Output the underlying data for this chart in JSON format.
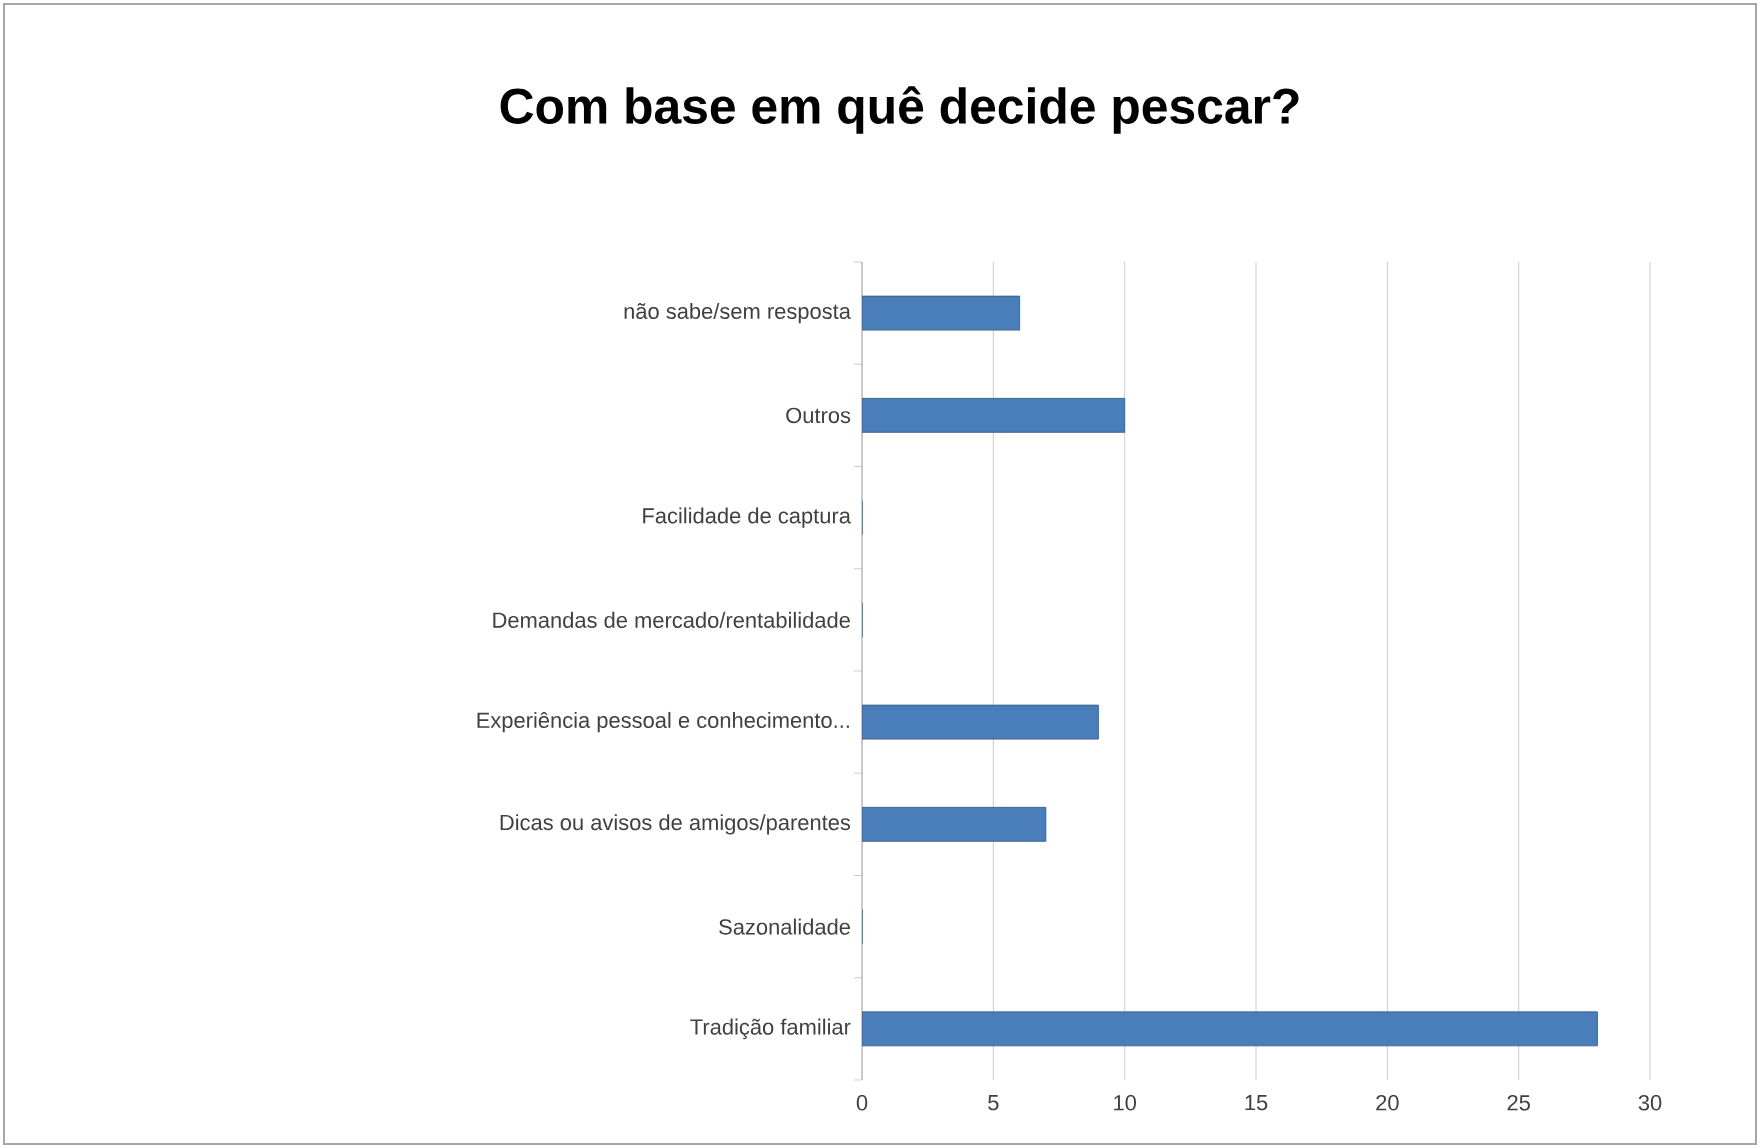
{
  "chart_data": {
    "type": "bar",
    "orientation": "horizontal",
    "title": "Com base em quê decide pescar?",
    "categories": [
      "não sabe/sem resposta",
      "Outros",
      "Facilidade de captura",
      "Demandas de mercado/rentabilidade",
      "Experiência pessoal e conhecimento...",
      "Dicas ou avisos de amigos/parentes",
      "Sazonalidade",
      "Tradição familiar"
    ],
    "values": [
      6,
      10,
      0,
      0,
      9,
      7,
      0,
      28
    ],
    "color": "#4a7ebb",
    "xlim": [
      0,
      30
    ],
    "xticks": [
      0,
      5,
      10,
      15,
      20,
      25,
      30
    ],
    "grid": "x"
  }
}
